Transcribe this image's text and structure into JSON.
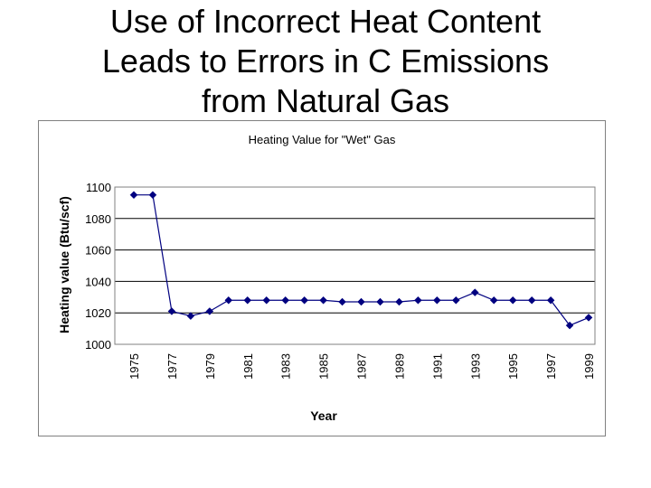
{
  "slide": {
    "title_lines": [
      "Use of Incorrect Heat Content",
      "Leads to Errors in C Emissions",
      "from Natural Gas"
    ]
  },
  "chart_data": {
    "type": "line",
    "title": "Heating Value for \"Wet\" Gas",
    "xlabel": "Year",
    "ylabel": "Heating value (Btu/scf)",
    "ylim": [
      1000,
      1100
    ],
    "yticks": [
      1000,
      1020,
      1040,
      1060,
      1080,
      1100
    ],
    "x": [
      1975,
      1976,
      1977,
      1978,
      1979,
      1980,
      1981,
      1982,
      1983,
      1984,
      1985,
      1986,
      1987,
      1988,
      1989,
      1990,
      1991,
      1992,
      1993,
      1994,
      1995,
      1996,
      1997,
      1998,
      1999
    ],
    "xtick_labels": [
      "1975",
      "1977",
      "1979",
      "1981",
      "1983",
      "1985",
      "1987",
      "1989",
      "1991",
      "1993",
      "1995",
      "1997",
      "1999"
    ],
    "series": [
      {
        "values": [
          1095,
          1095,
          1021,
          1018,
          1021,
          1028,
          1028,
          1028,
          1028,
          1028,
          1028,
          1027,
          1027,
          1027,
          1027,
          1028,
          1028,
          1028,
          1033,
          1028,
          1028,
          1028,
          1028,
          1012,
          1017
        ],
        "color": "#000080"
      }
    ],
    "grid": true,
    "legend": "none",
    "colors": {
      "plot_border": "#808080",
      "gridline": "#000000",
      "text": "#000000"
    }
  }
}
